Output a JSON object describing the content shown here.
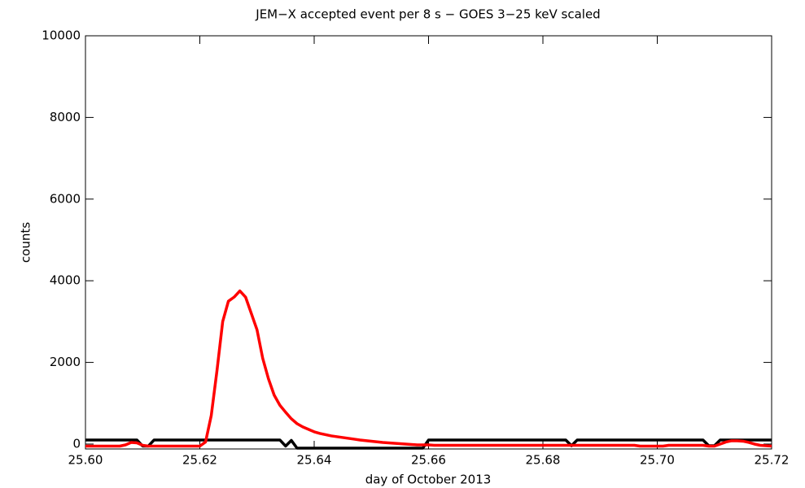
{
  "chart_data": {
    "type": "line",
    "title": "JEM−X accepted event per 8 s  − GOES 3−25 keV scaled",
    "xlabel": "day of October 2013",
    "ylabel": "counts",
    "x": [
      25.6,
      25.601,
      25.602,
      25.603,
      25.604,
      25.605,
      25.606,
      25.607,
      25.608,
      25.609,
      25.61,
      25.611,
      25.612,
      25.613,
      25.614,
      25.615,
      25.616,
      25.617,
      25.618,
      25.619,
      25.62,
      25.621,
      25.622,
      25.623,
      25.624,
      25.625,
      25.626,
      25.627,
      25.628,
      25.629,
      25.63,
      25.631,
      25.632,
      25.633,
      25.634,
      25.635,
      25.636,
      25.637,
      25.638,
      25.639,
      25.64,
      25.641,
      25.642,
      25.643,
      25.644,
      25.645,
      25.646,
      25.647,
      25.648,
      25.649,
      25.65,
      25.651,
      25.652,
      25.653,
      25.654,
      25.655,
      25.656,
      25.657,
      25.658,
      25.659,
      25.66,
      25.661,
      25.662,
      25.663,
      25.664,
      25.665,
      25.666,
      25.667,
      25.668,
      25.669,
      25.67,
      25.671,
      25.672,
      25.673,
      25.674,
      25.675,
      25.676,
      25.677,
      25.678,
      25.679,
      25.68,
      25.681,
      25.682,
      25.683,
      25.684,
      25.685,
      25.686,
      25.687,
      25.688,
      25.689,
      25.69,
      25.691,
      25.692,
      25.693,
      25.694,
      25.695,
      25.696,
      25.697,
      25.698,
      25.699,
      25.7,
      25.701,
      25.702,
      25.703,
      25.704,
      25.705,
      25.706,
      25.707,
      25.708,
      25.709,
      25.71,
      25.711,
      25.712,
      25.713,
      25.714,
      25.715,
      25.716,
      25.717,
      25.718,
      25.719,
      25.72
    ],
    "series": [
      {
        "color": "#000000",
        "values": [
          100,
          100,
          100,
          100,
          100,
          100,
          100,
          100,
          100,
          100,
          -50,
          -50,
          100,
          100,
          100,
          100,
          100,
          100,
          100,
          100,
          100,
          100,
          100,
          100,
          100,
          100,
          100,
          100,
          100,
          100,
          100,
          100,
          100,
          100,
          100,
          -50,
          90,
          -100,
          -100,
          -100,
          -100,
          -100,
          -100,
          -100,
          -100,
          -100,
          -100,
          -100,
          -100,
          -100,
          -100,
          -100,
          -100,
          -100,
          -100,
          -100,
          -100,
          -100,
          -100,
          -100,
          100,
          100,
          100,
          100,
          100,
          100,
          100,
          100,
          100,
          100,
          100,
          100,
          100,
          100,
          100,
          100,
          100,
          100,
          100,
          100,
          100,
          100,
          100,
          100,
          100,
          -40,
          100,
          100,
          100,
          100,
          100,
          100,
          100,
          100,
          100,
          100,
          100,
          100,
          100,
          100,
          100,
          100,
          100,
          100,
          100,
          100,
          100,
          100,
          100,
          -40,
          -40,
          100,
          100,
          100,
          100,
          100,
          100,
          100,
          100,
          100,
          100
        ]
      },
      {
        "color": "#ff0000",
        "values": [
          -50,
          -50,
          -50,
          -50,
          -50,
          -50,
          -50,
          -20,
          40,
          30,
          -30,
          -50,
          -50,
          -50,
          -50,
          -50,
          -50,
          -50,
          -50,
          -50,
          -50,
          50,
          700,
          1800,
          3000,
          3500,
          3600,
          3750,
          3600,
          3200,
          2800,
          2100,
          1600,
          1200,
          950,
          780,
          620,
          500,
          420,
          360,
          300,
          260,
          230,
          200,
          180,
          160,
          140,
          120,
          100,
          85,
          70,
          55,
          40,
          30,
          20,
          10,
          0,
          -10,
          -20,
          -20,
          -20,
          -30,
          -30,
          -30,
          -30,
          -30,
          -30,
          -30,
          -30,
          -30,
          -30,
          -30,
          -30,
          -30,
          -30,
          -30,
          -30,
          -30,
          -30,
          -30,
          -30,
          -30,
          -30,
          -30,
          -30,
          -30,
          -30,
          -30,
          -30,
          -30,
          -30,
          -30,
          -30,
          -30,
          -30,
          -30,
          -30,
          -50,
          -50,
          -50,
          -50,
          -50,
          -30,
          -30,
          -30,
          -30,
          -30,
          -30,
          -30,
          -50,
          -50,
          0,
          50,
          80,
          80,
          70,
          40,
          0,
          -30,
          -40,
          -50
        ]
      }
    ],
    "xlim": [
      25.6,
      25.72
    ],
    "xticks": [
      {
        "value": 25.6,
        "label": "25.60"
      },
      {
        "value": 25.62,
        "label": "25.62"
      },
      {
        "value": 25.64,
        "label": "25.64"
      },
      {
        "value": 25.66,
        "label": "25.66"
      },
      {
        "value": 25.68,
        "label": "25.68"
      },
      {
        "value": 25.7,
        "label": "25.70"
      },
      {
        "value": 25.72,
        "label": "25.72"
      }
    ],
    "ylim": [
      -120,
      10000
    ],
    "yticks": [
      0,
      2000,
      4000,
      6000,
      8000,
      10000
    ]
  }
}
